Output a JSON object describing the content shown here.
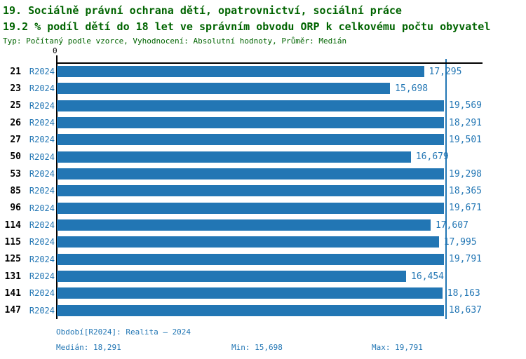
{
  "header": {
    "title": "19. Sociálně právní ochrana dětí, opatrovnictví, sociální práce",
    "subtitle": "19.2 % podíl dětí do 18 let ve správním obvodu ORP k celkovému počtu obyvatel",
    "meta": "Typ: Počítaný podle vzorce, Vyhodnocení: Absolutní hodnoty, Průměr: Medián"
  },
  "chart_data": {
    "type": "bar",
    "orientation": "horizontal",
    "title": "19.2 % podíl dětí do 18 let ve správním obvodu ORP k celkovému počtu obyvatel",
    "series_label": "R2024",
    "categories": [
      "21",
      "23",
      "25",
      "26",
      "27",
      "50",
      "53",
      "85",
      "96",
      "114",
      "115",
      "125",
      "131",
      "141",
      "147"
    ],
    "values": [
      17295,
      15698,
      19569,
      18291,
      19501,
      16679,
      19298,
      18365,
      19671,
      17607,
      17995,
      19791,
      16454,
      18163,
      18637
    ],
    "value_labels": [
      "17,295",
      "15,698",
      "19,569",
      "18,291",
      "19,501",
      "16,679",
      "19,298",
      "18,365",
      "19,671",
      "17,607",
      "17,995",
      "19,791",
      "16,454",
      "18,163",
      "18,637"
    ],
    "x_axis": {
      "tick_label": "0",
      "min": 0,
      "max": 20020
    },
    "median": 18291,
    "legend_position": "none",
    "grid": false,
    "colors": {
      "bar": "#2276b4",
      "label_blue": "#2276b4",
      "title_green": "#006400",
      "axis": "#000000"
    }
  },
  "footer": {
    "period": "Období[R2024]: Realita – 2024",
    "median": "Medián: 18,291",
    "min": "Min: 15,698",
    "max": "Max: 19,791"
  }
}
